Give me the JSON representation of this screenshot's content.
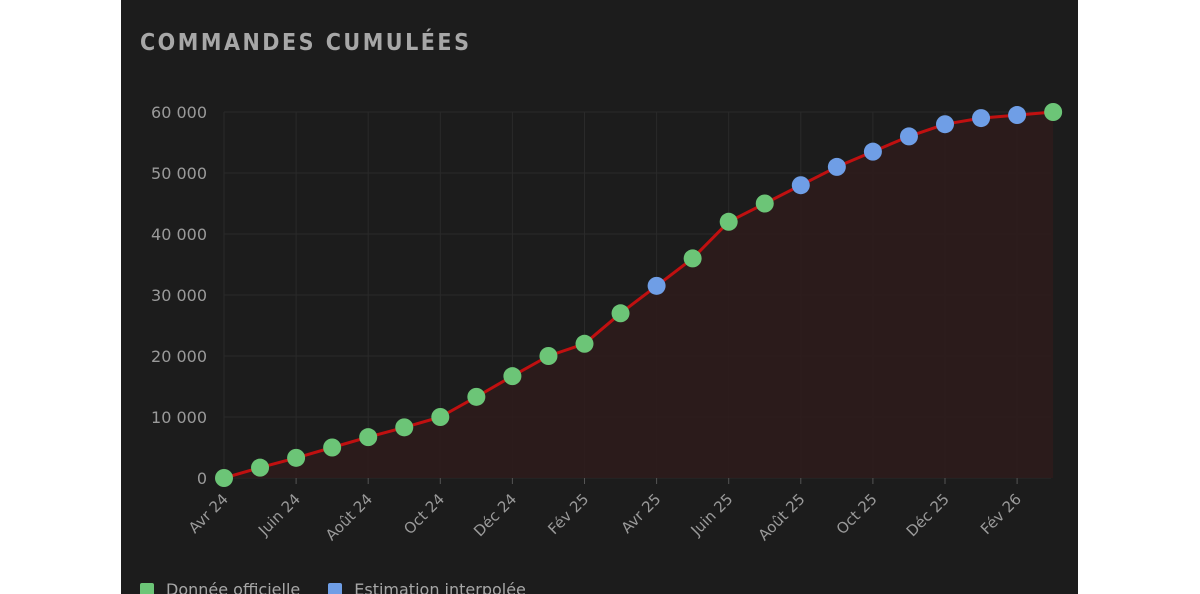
{
  "colors": {
    "background": "#1c1c1c",
    "grid": "#2a2a2a",
    "line": "#c01010",
    "area": "#2e1b1b",
    "official": "#6cc577",
    "estimated": "#6f9ee6",
    "text": "#9a9a9a"
  },
  "chart_data": {
    "type": "line",
    "title": "COMMANDES CUMULÉES",
    "xlabel": "",
    "ylabel": "",
    "ylim": [
      0,
      60000
    ],
    "y_ticks": [
      "0",
      "10 000",
      "20 000",
      "30 000",
      "40 000",
      "50 000",
      "60 000"
    ],
    "x_tick_labels": [
      "Avr 24",
      "Juin 24",
      "Août 24",
      "Oct 24",
      "Déc 24",
      "Fév 25",
      "Avr 25",
      "Juin 25",
      "Août 25",
      "Oct 25",
      "Déc 25",
      "Fév 26"
    ],
    "grid": true,
    "legend": {
      "position": "bottom-left",
      "entries": [
        {
          "label": "Donnée officielle",
          "kind": "official"
        },
        {
          "label": "Estimation interpolée",
          "kind": "estimated"
        }
      ]
    },
    "points": [
      {
        "date": "2024-04",
        "value": 0,
        "kind": "official"
      },
      {
        "date": "2024-05",
        "value": 1700,
        "kind": "official"
      },
      {
        "date": "2024-06",
        "value": 3300,
        "kind": "official"
      },
      {
        "date": "2024-07",
        "value": 5000,
        "kind": "official"
      },
      {
        "date": "2024-08",
        "value": 6700,
        "kind": "official"
      },
      {
        "date": "2024-09",
        "value": 8300,
        "kind": "official"
      },
      {
        "date": "2024-10",
        "value": 10000,
        "kind": "official"
      },
      {
        "date": "2024-11",
        "value": 13300,
        "kind": "official"
      },
      {
        "date": "2024-12",
        "value": 16700,
        "kind": "official"
      },
      {
        "date": "2025-01",
        "value": 20000,
        "kind": "official"
      },
      {
        "date": "2025-02",
        "value": 22000,
        "kind": "official"
      },
      {
        "date": "2025-03",
        "value": 27000,
        "kind": "official"
      },
      {
        "date": "2025-04",
        "value": 31500,
        "kind": "estimated"
      },
      {
        "date": "2025-05",
        "value": 36000,
        "kind": "official"
      },
      {
        "date": "2025-06",
        "value": 42000,
        "kind": "official"
      },
      {
        "date": "2025-07",
        "value": 45000,
        "kind": "official"
      },
      {
        "date": "2025-08",
        "value": 48000,
        "kind": "estimated"
      },
      {
        "date": "2025-09",
        "value": 51000,
        "kind": "estimated"
      },
      {
        "date": "2025-10",
        "value": 53500,
        "kind": "estimated"
      },
      {
        "date": "2025-11",
        "value": 56000,
        "kind": "estimated"
      },
      {
        "date": "2025-12",
        "value": 58000,
        "kind": "estimated"
      },
      {
        "date": "2026-01",
        "value": 59000,
        "kind": "estimated"
      },
      {
        "date": "2026-02",
        "value": 59500,
        "kind": "estimated"
      },
      {
        "date": "2026-03",
        "value": 60000,
        "kind": "official"
      }
    ]
  }
}
